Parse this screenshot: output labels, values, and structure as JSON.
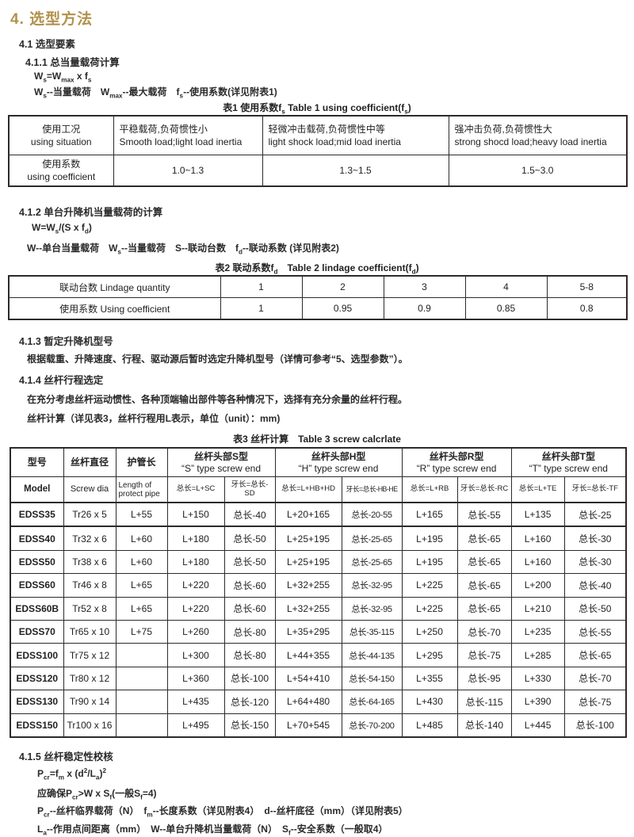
{
  "accent_color": "#B2914C",
  "title": "4. 选型方法",
  "s41": {
    "heading": "4.1 选型要素"
  },
  "s411": {
    "heading": "4.1.1 总当量载荷计算",
    "formula_html": "W<sub>s</sub>=W<sub>max</sub> x f<sub>s</sub>",
    "legend_html": "W<sub>s</sub>--当量载荷　W<sub>max</sub>--最大载荷　f<sub>s</sub>--使用系数(详见附表1)"
  },
  "table1": {
    "caption_html": "表1 使用系数f<sub>s</sub> Table 1 using coefficient(f<sub>s</sub>)",
    "col1": {
      "cn": "使用工况",
      "en": "using situation"
    },
    "row2_label": {
      "cn": "使用系数",
      "en": "using coefficient"
    },
    "cols": [
      {
        "cn": "平稳载荷,负荷惯性小",
        "en": "Smooth load;light load inertia",
        "value": "1.0~1.3"
      },
      {
        "cn": "轻微冲击载荷,负荷惯性中等",
        "en": "light shock load;mid load inertia",
        "value": "1.3~1.5"
      },
      {
        "cn": "强冲击负荷,负荷惯性大",
        "en": "strong shocd load;heavy load inertia",
        "value": "1.5~3.0"
      }
    ]
  },
  "s412": {
    "heading": "4.1.2 单台升降机当量载荷的计算",
    "formula_html": "W=W<sub>s</sub>/(S x f<sub>d</sub>)",
    "legend_html": "W--单台当量载荷　W<sub>s</sub>--当量载荷　S--联动台数　f<sub>d</sub>--联动系数 (详见附表2)"
  },
  "table2": {
    "caption_html": "表2 联动系数f<sub>d</sub>　Table 2 lindage coefficient(f<sub>d</sub>)",
    "row1_label": "联动台数  Lindage quantity",
    "row1_values": [
      "1",
      "2",
      "3",
      "4",
      "5-8"
    ],
    "row2_label": "使用系数  Using coefficient",
    "row2_values": [
      "1",
      "0.95",
      "0.9",
      "0.85",
      "0.8"
    ]
  },
  "s413": {
    "heading": "4.1.3 暂定升降机型号",
    "body": "根据载重、升降速度、行程、驱动源后暂时选定升降机型号（详情可参考“5、选型参数”）。"
  },
  "s414": {
    "heading": "4.1.4 丝杆行程选定",
    "body1": "在充分考虑丝杆运动惯性、各种顶端输出部件等各种情况下，选择有充分余量的丝杆行程。",
    "body2": "丝杆计算（详见表3，丝杆行程用L表示，单位（unit）：mm)"
  },
  "table3": {
    "caption": "表3 丝杆计算　Table 3  screw calcrlate",
    "head": {
      "model_cn": "型号",
      "model_en": "Model",
      "dia_cn": "丝杆直径",
      "dia_en": "Screw dia",
      "pipe_cn": "护管长",
      "pipe_en": "Length of protect pipe",
      "groups": [
        {
          "cn": "丝杆头部S型",
          "en": "“S” type screw end",
          "total": "总长=L+SC",
          "thread": "牙长=总长-SD"
        },
        {
          "cn": "丝杆头部H型",
          "en": "“H” type screw end",
          "total": "总长=L+HB+HD",
          "thread": "牙长=总长-HB-HE"
        },
        {
          "cn": "丝杆头部R型",
          "en": "“R” type screw end",
          "total": "总长=L+RB",
          "thread": "牙长=总长-RC"
        },
        {
          "cn": "丝杆头部T型",
          "en": "“T” type screw end",
          "total": "总长=L+TE",
          "thread": "牙长=总长-TF"
        }
      ]
    },
    "rows": [
      [
        "EDSS35",
        "Tr26 x 5",
        "L+55",
        "L+150",
        "总长-40",
        "L+20+165",
        "总长-20-55",
        "L+165",
        "总长-55",
        "L+135",
        "总长-25"
      ],
      [
        "EDSS40",
        "Tr32 x 6",
        "L+60",
        "L+180",
        "总长-50",
        "L+25+195",
        "总长-25-65",
        "L+195",
        "总长-65",
        "L+160",
        "总长-30"
      ],
      [
        "EDSS50",
        "Tr38 x 6",
        "L+60",
        "L+180",
        "总长-50",
        "L+25+195",
        "总长-25-65",
        "L+195",
        "总长-65",
        "L+160",
        "总长-30"
      ],
      [
        "EDSS60",
        "Tr46 x 8",
        "L+65",
        "L+220",
        "总长-60",
        "L+32+255",
        "总长-32-95",
        "L+225",
        "总长-65",
        "L+200",
        "总长-40"
      ],
      [
        "EDSS60B",
        "Tr52 x 8",
        "L+65",
        "L+220",
        "总长-60",
        "L+32+255",
        "总长-32-95",
        "L+225",
        "总长-65",
        "L+210",
        "总长-50"
      ],
      [
        "EDSS70",
        "Tr65 x 10",
        "L+75",
        "L+260",
        "总长-80",
        "L+35+295",
        "总长-35-115",
        "L+250",
        "总长-70",
        "L+235",
        "总长-55"
      ],
      [
        "EDSS100",
        "Tr75 x 12",
        "",
        "L+300",
        "总长-80",
        "L+44+355",
        "总长-44-135",
        "L+295",
        "总长-75",
        "L+285",
        "总长-65"
      ],
      [
        "EDSS120",
        "Tr80 x 12",
        "",
        "L+360",
        "总长-100",
        "L+54+410",
        "总长-54-150",
        "L+355",
        "总长-95",
        "L+330",
        "总长-70"
      ],
      [
        "EDSS130",
        "Tr90 x 14",
        "",
        "L+435",
        "总长-120",
        "L+64+480",
        "总长-64-165",
        "L+430",
        "总长-115",
        "L+390",
        "总长-75"
      ],
      [
        "EDSS150",
        "Tr100 x 16",
        "",
        "L+495",
        "总长-150",
        "L+70+545",
        "总长-70-200",
        "L+485",
        "总长-140",
        "L+445",
        "总长-100"
      ]
    ]
  },
  "s415": {
    "heading": "4.1.5 丝杆稳定性校核",
    "formula1_html": "P<sub>cr</sub>=f<sub>m</sub> x (d<sup>2</sup>/L<sub>a</sub>)<sup>2</sup>",
    "formula2_html": "应确保P<sub>cr</sub>&gt;W x S<sub>f</sub>(一般S<sub>f</sub>=4)",
    "legend1_html": "P<sub>cr</sub>--丝杆临界载荷（N）　f<sub>m</sub>--长度系数（详见附表4）　d--丝杆底径（mm）（详见附表5）",
    "legend2_html": "L<sub>a</sub>--作用点间距离（mm）　W--单台升降机当量载荷（N）　S<sub>f</sub>--安全系数（一般取4）"
  }
}
